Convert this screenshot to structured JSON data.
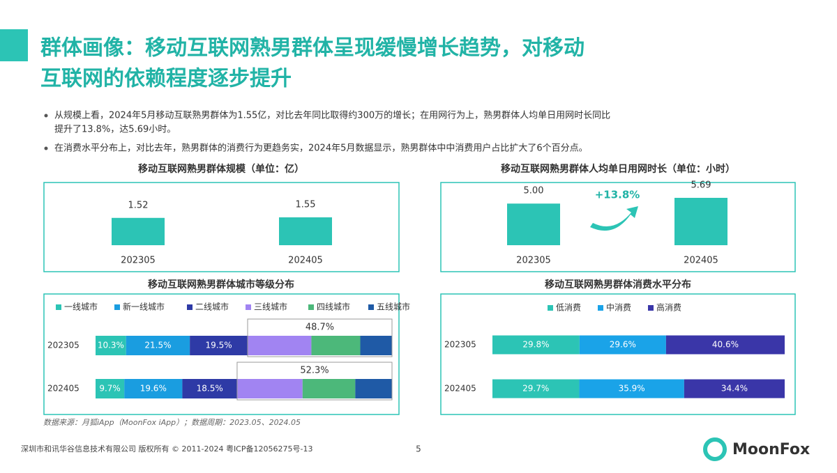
{
  "header": {
    "title_lines": [
      "群体画像：移动互联网熟男群体呈现缓慢增长趋势，对移动",
      "互联网的依赖程度逐步提升"
    ]
  },
  "bullets": [
    [
      "从规模上看，2024年5月移动互联熟男群体为1.55亿，对比去年同比取得约300万的增长；在用网行为上，熟男群体人均单日用网时长同比",
      "提升了13.8%，达5.69小时。"
    ],
    [
      "在消费水平分布上，对比去年，熟男群体的消费行为更趋务实，2024年5月数据显示，熟男群体中中消费用户占比扩大了6个百分点。"
    ]
  ],
  "chart_data": [
    {
      "type": "bar",
      "title": "移动互联网熟男群体规模（单位：亿）",
      "categories": [
        "202305",
        "202405"
      ],
      "values": [
        1.52,
        1.55
      ],
      "color": "#2cc4b5"
    },
    {
      "type": "bar",
      "title": "移动互联网熟男群体人均单日用网时长（单位：小时）",
      "categories": [
        "202305",
        "202405"
      ],
      "values": [
        5.0,
        5.69
      ],
      "value_labels": [
        "5.00",
        "5.69"
      ],
      "color": "#2cc4b5",
      "annotation": "+13.8%"
    },
    {
      "type": "stacked_bar",
      "title": "移动互联网熟男群体城市等级分布",
      "categories": [
        "202305",
        "202405"
      ],
      "series": [
        {
          "name": "一线城市",
          "color": "#2cc4b5",
          "values": [
            10.3,
            9.7
          ],
          "value_labels": [
            "10.3%",
            "9.7%"
          ]
        },
        {
          "name": "新一线城市",
          "color": "#1a9de0",
          "values": [
            21.5,
            19.6
          ],
          "value_labels": [
            "21.5%",
            "19.6%"
          ]
        },
        {
          "name": "二线城市",
          "color": "#2e3aa6",
          "values": [
            19.5,
            18.5
          ],
          "value_labels": [
            "19.5%",
            "18.5%"
          ]
        },
        {
          "name": "三线城市",
          "color": "#a184f2",
          "values": [
            21.5,
            22.1
          ]
        },
        {
          "name": "四线城市",
          "color": "#4cb87a",
          "values": [
            16.5,
            17.8
          ]
        },
        {
          "name": "五线城市",
          "color": "#1f5aa6",
          "values": [
            10.7,
            12.4
          ]
        }
      ],
      "group_totals": {
        "values": [
          48.7,
          52.3
        ],
        "value_labels": [
          "48.7%",
          "52.3%"
        ]
      }
    },
    {
      "type": "stacked_bar",
      "title": "移动互联网熟男群体消费水平分布",
      "categories": [
        "202305",
        "202405"
      ],
      "series": [
        {
          "name": "低消费",
          "color": "#2cc4b5",
          "values": [
            29.8,
            29.7
          ],
          "value_labels": [
            "29.8%",
            "29.7%"
          ]
        },
        {
          "name": "中消费",
          "color": "#1aa3e8",
          "values": [
            29.6,
            35.9
          ],
          "value_labels": [
            "29.6%",
            "35.9%"
          ]
        },
        {
          "name": "高消费",
          "color": "#3a36a8",
          "values": [
            40.6,
            34.4
          ],
          "value_labels": [
            "40.6%",
            "34.4%"
          ]
        }
      ]
    }
  ],
  "source": "数据来源：月狐iApp（MoonFox iApp）；数据周期：2023.05、2024.05",
  "footer": "深圳市和讯华谷信息技术有限公司 版权所有 © 2011-2024 粤ICP备12056275号-13",
  "page_number": "5",
  "logo": "MoonFox"
}
